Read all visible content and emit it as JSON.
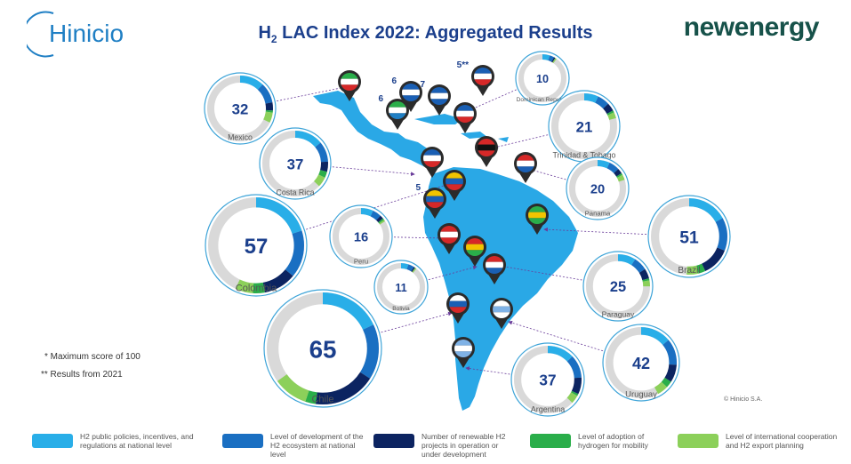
{
  "header": {
    "logo_text": "Hinicio",
    "title_prefix": "H",
    "title_sub": "2",
    "title_rest": " LAC Index 2022: Aggregated Results",
    "brand": "newenergy"
  },
  "colors": {
    "policies": "#29aee8",
    "ecosystem": "#1a6fc2",
    "projects": "#0c2461",
    "mobility": "#2aae4a",
    "cooperation": "#8cd05a",
    "remaining": "#d9d9d9",
    "map": "#2aa8e6",
    "arrow": "#6a3d9a",
    "score": "#1b3f8c"
  },
  "notes": {
    "max_score": "* Maximum score of 100",
    "results_2021": "** Results from 2021",
    "copyright": "© Hinicio S.A."
  },
  "legend": [
    {
      "key": "policies",
      "label": "H2 public policies, incentives, and regulations at national level"
    },
    {
      "key": "ecosystem",
      "label": "Level of development of the H2 ecosystem at national level"
    },
    {
      "key": "projects",
      "label": "Number of renewable H2 projects in operation or under development"
    },
    {
      "key": "mobility",
      "label": "Level of adoption of hydrogen for mobility"
    },
    {
      "key": "cooperation",
      "label": "Level of international cooperation and H2 export planning"
    }
  ],
  "pin_numbers": [
    "6",
    "6",
    "7",
    "5**",
    "5"
  ],
  "countries": [
    {
      "name": "Mexico",
      "score": 32,
      "segments": [
        12,
        10,
        4,
        1,
        5
      ]
    },
    {
      "name": "Costa Rica",
      "score": 37,
      "segments": [
        14,
        10,
        5,
        3,
        5
      ]
    },
    {
      "name": "Colombia",
      "score": 57,
      "segments": [
        20,
        16,
        11,
        4,
        6
      ]
    },
    {
      "name": "Peru",
      "score": 16,
      "segments": [
        7,
        5,
        2,
        1,
        1
      ]
    },
    {
      "name": "Bolivia",
      "score": 11,
      "segments": [
        5,
        4,
        1,
        0,
        1
      ]
    },
    {
      "name": "Chile",
      "score": 65,
      "segments": [
        18,
        16,
        18,
        3,
        10
      ]
    },
    {
      "name": "Dominican Republic",
      "score": 10,
      "segments": [
        5,
        3,
        1,
        0,
        1
      ]
    },
    {
      "name": "Trinidad & Tobago",
      "score": 21,
      "segments": [
        7,
        6,
        4,
        1,
        3
      ]
    },
    {
      "name": "Panama",
      "score": 20,
      "segments": [
        7,
        6,
        3,
        1,
        3
      ]
    },
    {
      "name": "Brazil",
      "score": 51,
      "segments": [
        17,
        14,
        12,
        3,
        5
      ]
    },
    {
      "name": "Paraguay",
      "score": 25,
      "segments": [
        9,
        7,
        5,
        1,
        3
      ]
    },
    {
      "name": "Uruguay",
      "score": 42,
      "segments": [
        14,
        12,
        8,
        3,
        5
      ]
    },
    {
      "name": "Argentina",
      "score": 37,
      "segments": [
        13,
        11,
        8,
        1,
        4
      ]
    }
  ]
}
